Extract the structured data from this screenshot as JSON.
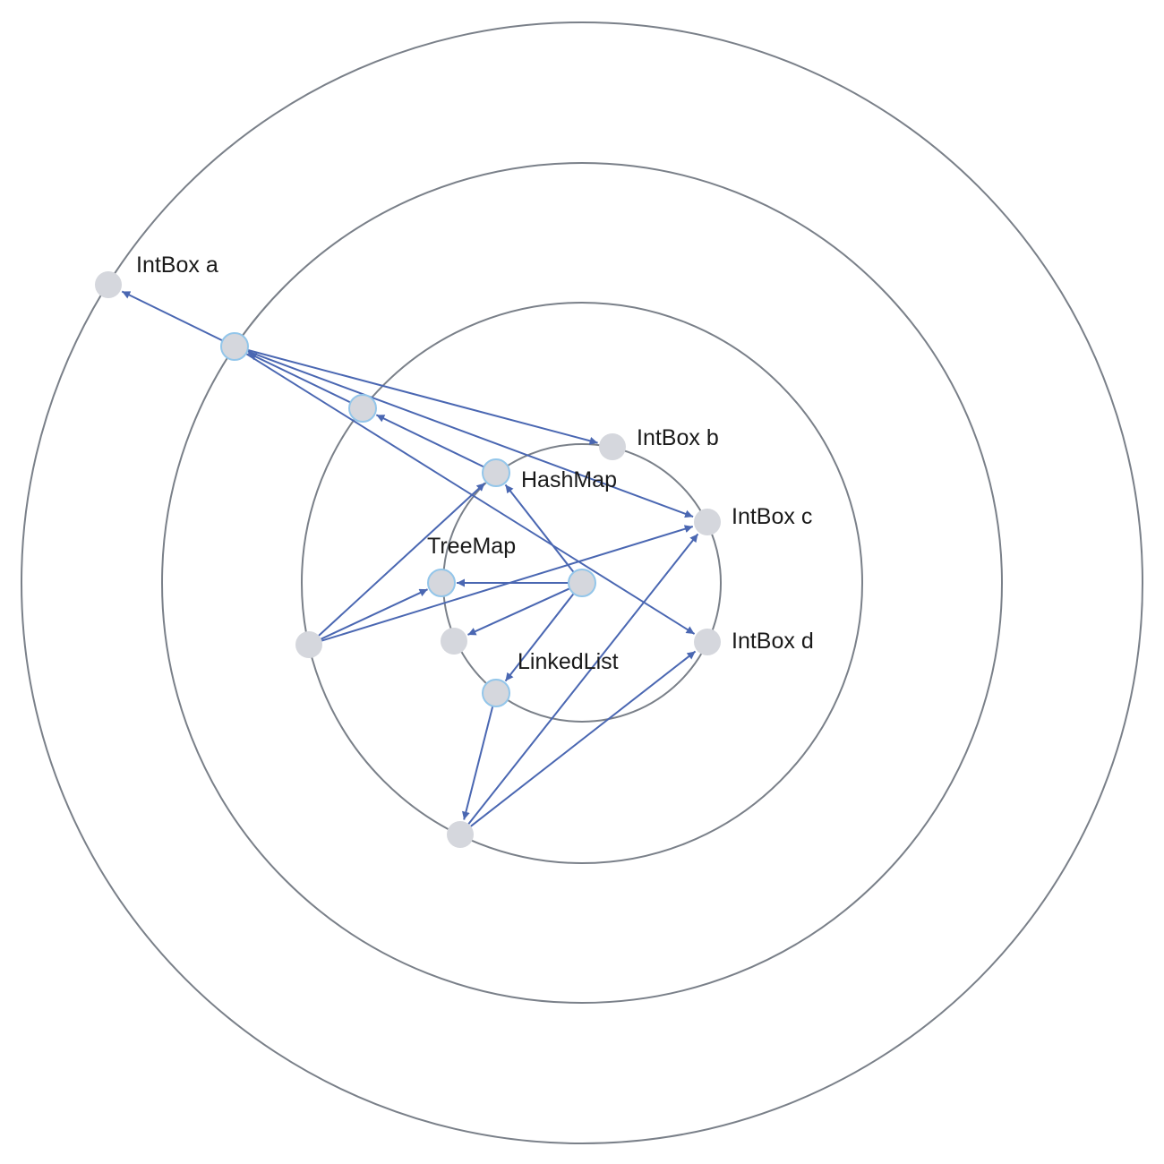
{
  "diagram": {
    "colors": {
      "ring": "#7a8089",
      "edge": "#4a67b2",
      "node_fill": "#d5d7dd",
      "node_highlight_stroke": "#93c6ea",
      "background": "#ffffff"
    },
    "labels": {
      "intbox_a": "IntBox a",
      "intbox_b": "IntBox b",
      "intbox_c": "IntBox c",
      "intbox_d": "IntBox d",
      "hashmap": "HashMap",
      "treemap": "TreeMap",
      "linkedlist": "LinkedList"
    },
    "edges": [
      {
        "from": "n_outer_link",
        "to": "intbox_a"
      },
      {
        "from": "n_outer_link",
        "to": "intbox_b"
      },
      {
        "from": "n_outer_link",
        "to": "intbox_c"
      },
      {
        "from": "n_outer_link",
        "to": "intbox_d"
      },
      {
        "from": "n_ring2_link",
        "to": "n_outer_link"
      },
      {
        "from": "hashmap",
        "to": "n_ring2_link"
      },
      {
        "from": "root",
        "to": "hashmap"
      },
      {
        "from": "root",
        "to": "treemap"
      },
      {
        "from": "root",
        "to": "n_center_plain"
      },
      {
        "from": "root",
        "to": "linkedlist"
      },
      {
        "from": "n_left",
        "to": "treemap"
      },
      {
        "from": "n_left",
        "to": "hashmap"
      },
      {
        "from": "n_left",
        "to": "intbox_c"
      },
      {
        "from": "linkedlist",
        "to": "n_bottom"
      },
      {
        "from": "n_bottom",
        "to": "intbox_c"
      },
      {
        "from": "n_bottom",
        "to": "intbox_d"
      }
    ]
  }
}
